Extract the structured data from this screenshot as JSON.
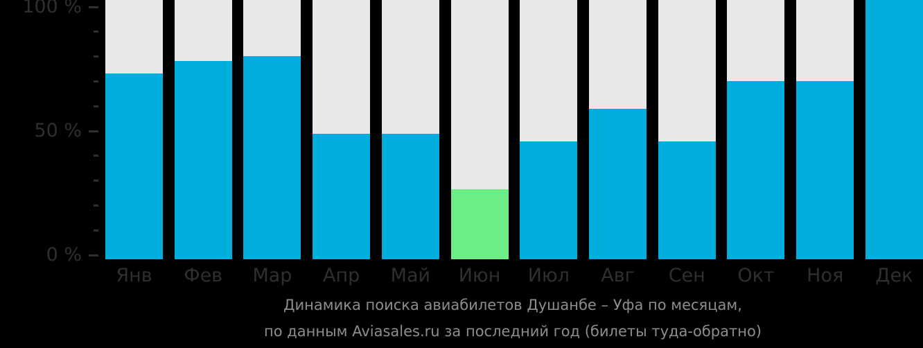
{
  "chart_data": {
    "type": "bar",
    "title": "Динамика поиска авиабилетов Душанбе – Уфа по месяцам,",
    "subtitle": "по данным Aviasales.ru за последний год (билеты туда-обратно)",
    "categories": [
      "Янв",
      "Фев",
      "Мар",
      "Апр",
      "Май",
      "Июн",
      "Июл",
      "Авг",
      "Сен",
      "Окт",
      "Ноя",
      "Дек"
    ],
    "values": [
      74,
      79,
      81,
      50,
      50,
      28,
      47,
      60,
      47,
      71,
      71,
      100
    ],
    "unit": "%",
    "highlight": {
      "index": 5,
      "category": "Июн"
    },
    "xlabel": "",
    "ylabel": "",
    "ylim": [
      0,
      100
    ],
    "grid": false,
    "legend": "none",
    "y_major_ticks": [
      {
        "value": 0,
        "label": "0 %"
      },
      {
        "value": 50,
        "label": "50 %"
      },
      {
        "value": 100,
        "label": "100 %"
      }
    ],
    "y_minor_tick_step": 10,
    "colors": {
      "bar": "#00aede",
      "highlight_bar": "#6aee85",
      "track": "#e8e8e8",
      "background": "#000000",
      "axis_text": "#2f2f2f",
      "tick": "#2f2f2f",
      "caption_text": "#8d8d8d"
    }
  }
}
